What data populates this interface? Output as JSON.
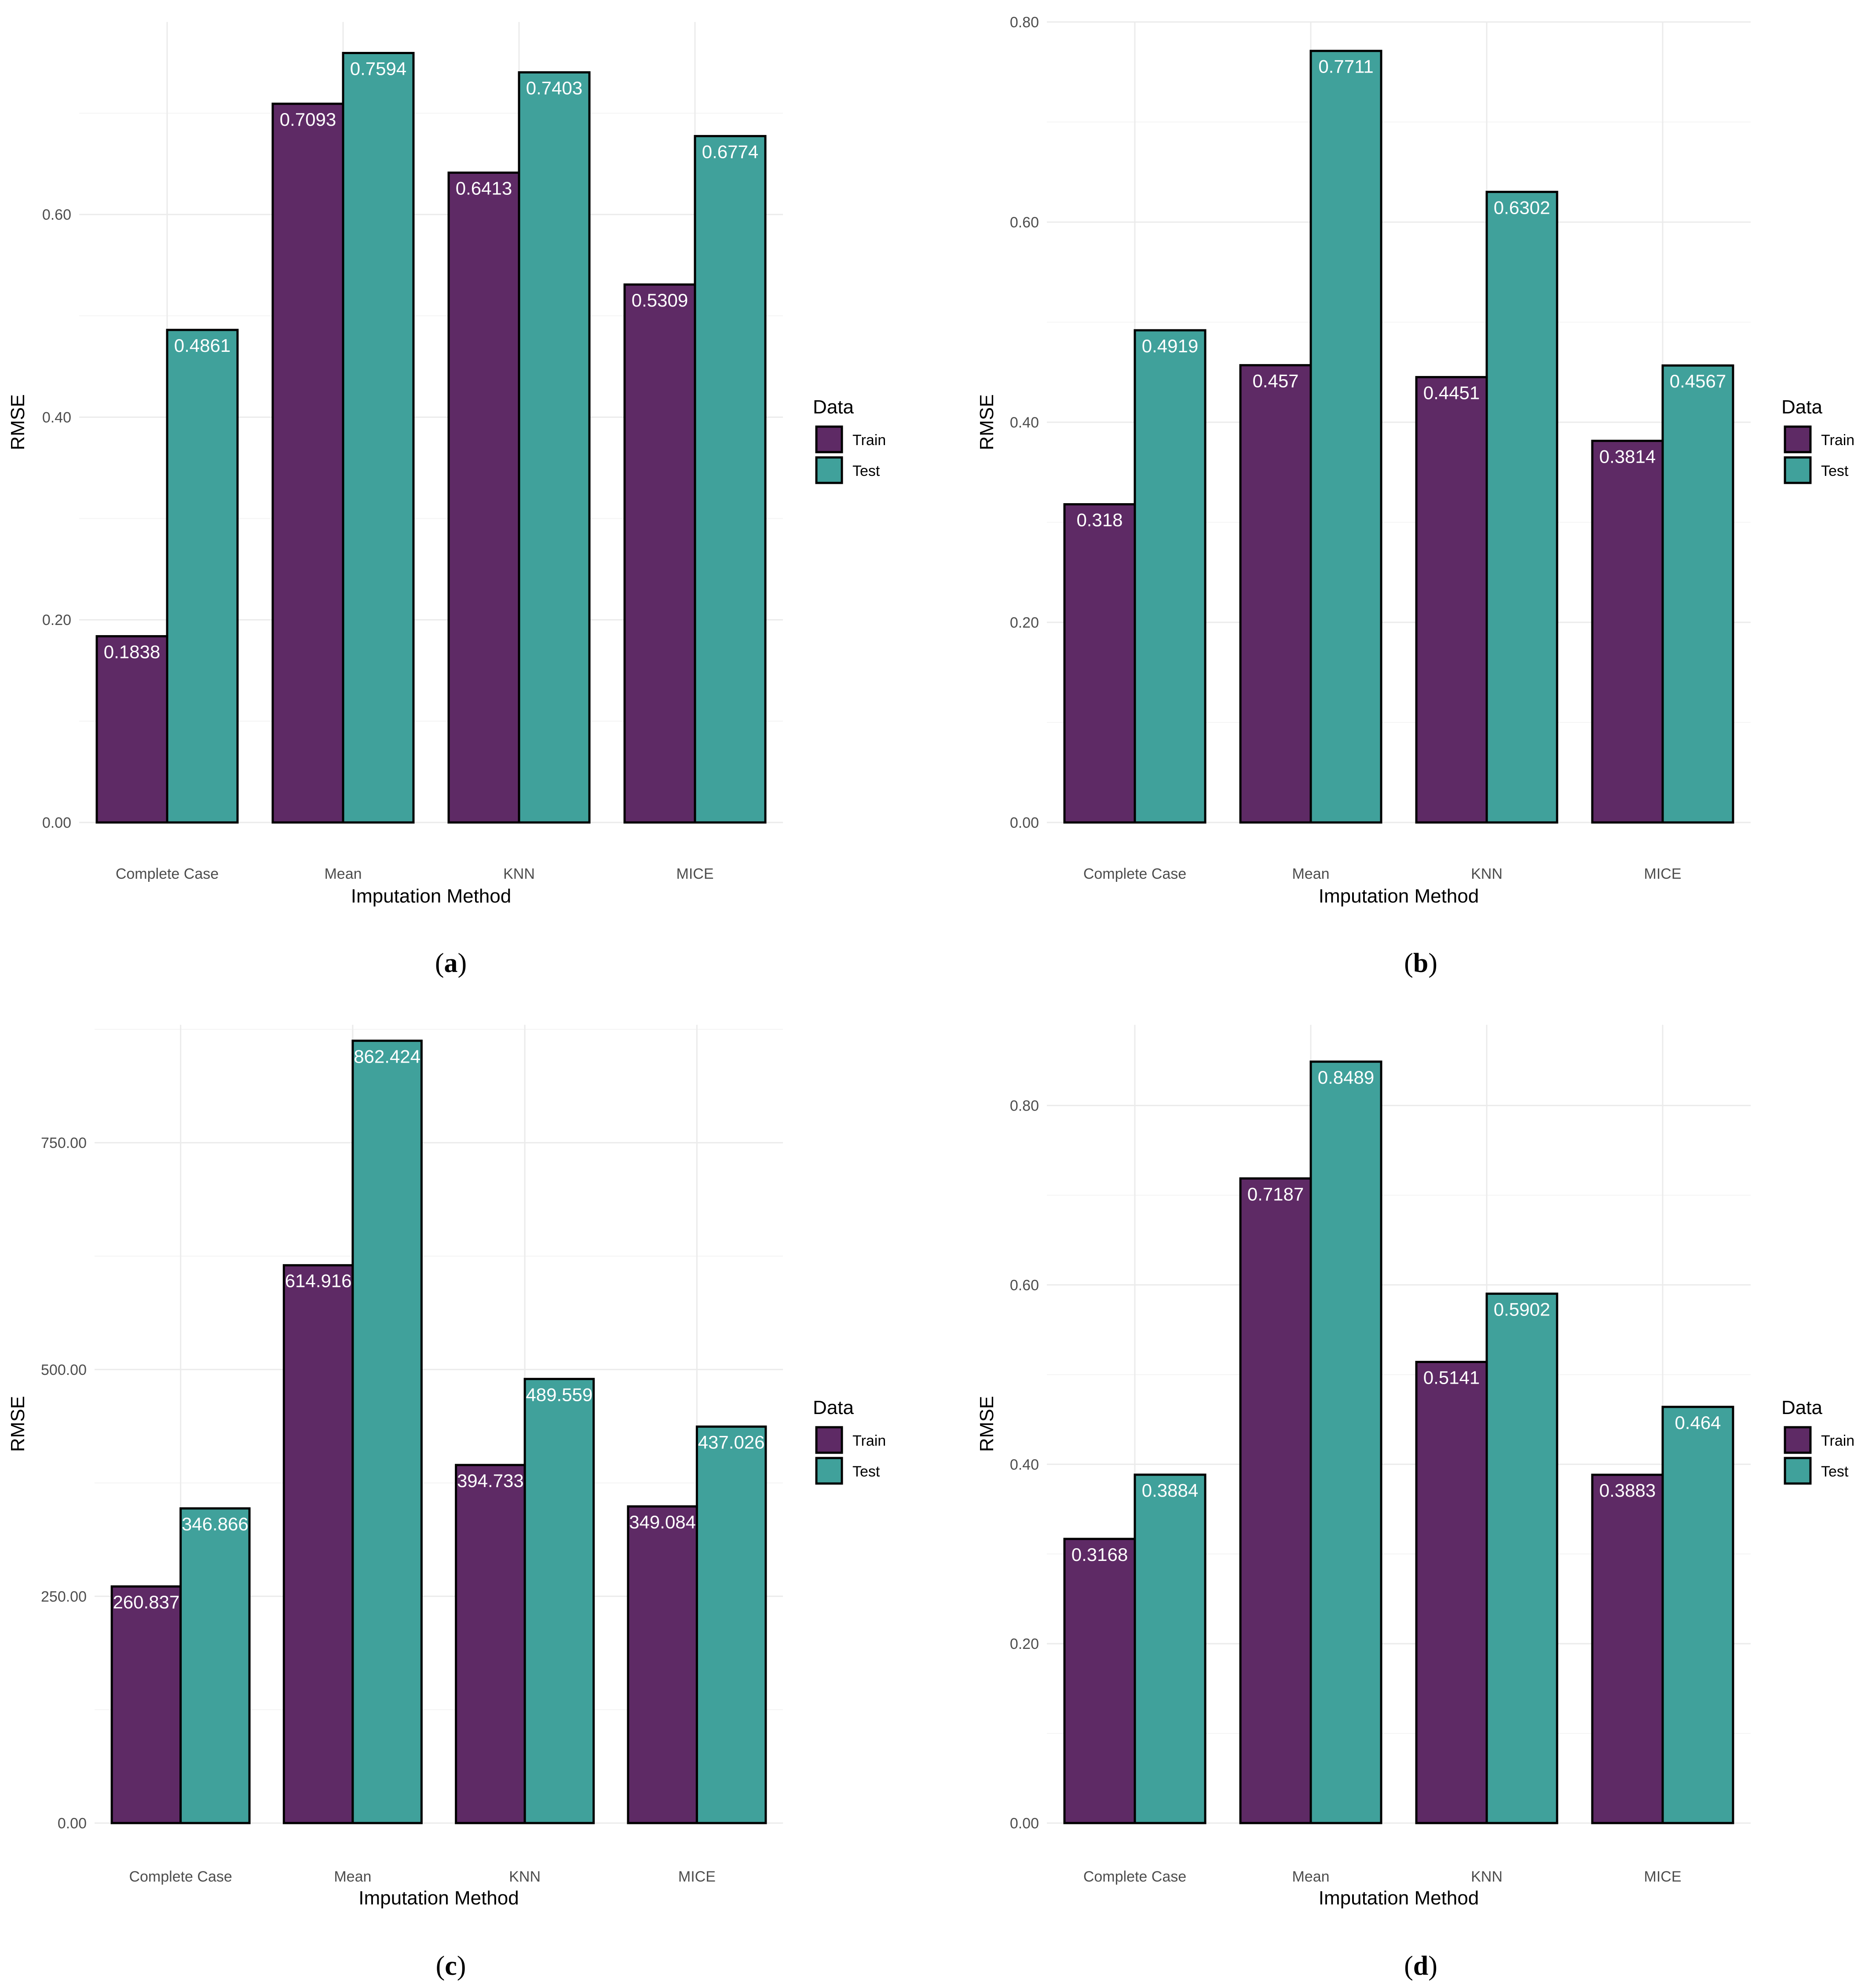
{
  "colors": {
    "train": "#5e2a65",
    "test": "#40a19b",
    "bar_outline": "#000000",
    "grid_major": "#ebebeb",
    "grid_minor": "#f4f4f4",
    "label_text": "#ffffff"
  },
  "chart_data": [
    {
      "type": "bar",
      "panel": "a",
      "caption_open": "(",
      "caption_letter": "a",
      "caption_close": ")",
      "xlabel": "Imputation Method",
      "ylabel": "RMSE",
      "ylim": [
        0,
        0.79
      ],
      "yticks": [
        0,
        0.2,
        0.4,
        0.6
      ],
      "ytick_labels": [
        "0.00",
        "0.20",
        "0.40",
        "0.60"
      ],
      "categories": [
        "Complete Case",
        "Mean",
        "KNN",
        "MICE"
      ],
      "series": [
        {
          "name": "Train",
          "values": [
            0.1838,
            0.7093,
            0.6413,
            0.5309
          ],
          "labels": [
            "0.1838",
            "0.7093",
            "0.6413",
            "0.5309"
          ]
        },
        {
          "name": "Test",
          "values": [
            0.4861,
            0.7594,
            0.7403,
            0.6774
          ],
          "labels": [
            "0.4861",
            "0.7594",
            "0.7403",
            "0.6774"
          ]
        }
      ],
      "legend": {
        "title": "Data",
        "items": [
          "Train",
          "Test"
        ]
      }
    },
    {
      "type": "bar",
      "panel": "b",
      "caption_open": "(",
      "caption_letter": "b",
      "caption_close": ")",
      "xlabel": "Imputation Method",
      "ylabel": "RMSE",
      "ylim": [
        0,
        0.8
      ],
      "yticks": [
        0,
        0.2,
        0.4,
        0.6,
        0.8
      ],
      "ytick_labels": [
        "0.00",
        "0.20",
        "0.40",
        "0.60",
        "0.80"
      ],
      "categories": [
        "Complete Case",
        "Mean",
        "KNN",
        "MICE"
      ],
      "series": [
        {
          "name": "Train",
          "values": [
            0.318,
            0.457,
            0.4451,
            0.3814
          ],
          "labels": [
            "0.318",
            "0.457",
            "0.4451",
            "0.3814"
          ]
        },
        {
          "name": "Test",
          "values": [
            0.4919,
            0.7711,
            0.6302,
            0.4567
          ],
          "labels": [
            "0.4919",
            "0.7711",
            "0.6302",
            "0.4567"
          ]
        }
      ],
      "legend": {
        "title": "Data",
        "items": [
          "Train",
          "Test"
        ]
      }
    },
    {
      "type": "bar",
      "panel": "c",
      "caption_open": "(",
      "caption_letter": "c",
      "caption_close": ")",
      "xlabel": "Imputation Method",
      "ylabel": "RMSE",
      "ylim": [
        0,
        880
      ],
      "yticks": [
        0,
        250,
        500,
        750
      ],
      "ytick_labels": [
        "0.00",
        "250.00",
        "500.00",
        "750.00"
      ],
      "categories": [
        "Complete Case",
        "Mean",
        "KNN",
        "MICE"
      ],
      "series": [
        {
          "name": "Train",
          "values": [
            260.837,
            614.916,
            394.733,
            349.084
          ],
          "labels": [
            "260.837",
            "614.916",
            "394.733",
            "349.084"
          ]
        },
        {
          "name": "Test",
          "values": [
            346.866,
            862.424,
            489.559,
            437.026
          ],
          "labels": [
            "346.866",
            "862.424",
            "489.559",
            "437.026"
          ]
        }
      ],
      "legend": {
        "title": "Data",
        "items": [
          "Train",
          "Test"
        ]
      }
    },
    {
      "type": "bar",
      "panel": "d",
      "caption_open": "(",
      "caption_letter": "d",
      "caption_close": ")",
      "xlabel": "Imputation Method",
      "ylabel": "RMSE",
      "ylim": [
        0,
        0.89
      ],
      "yticks": [
        0,
        0.2,
        0.4,
        0.6,
        0.8
      ],
      "ytick_labels": [
        "0.00",
        "0.20",
        "0.40",
        "0.60",
        "0.80"
      ],
      "categories": [
        "Complete Case",
        "Mean",
        "KNN",
        "MICE"
      ],
      "series": [
        {
          "name": "Train",
          "values": [
            0.3168,
            0.7187,
            0.5141,
            0.3883
          ],
          "labels": [
            "0.3168",
            "0.7187",
            "0.5141",
            "0.3883"
          ]
        },
        {
          "name": "Test",
          "values": [
            0.3884,
            0.8489,
            0.5902,
            0.464
          ],
          "labels": [
            "0.3884",
            "0.8489",
            "0.5902",
            "0.464"
          ]
        }
      ],
      "legend": {
        "title": "Data",
        "items": [
          "Train",
          "Test"
        ]
      }
    }
  ]
}
